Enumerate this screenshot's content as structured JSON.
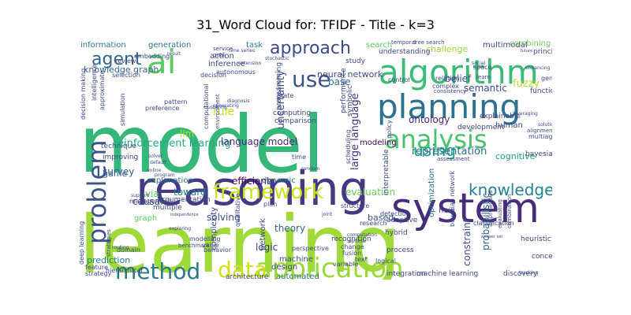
{
  "chart_data": {
    "type": "wordcloud",
    "title": "31_Word Cloud for: TFIDF - Title - k=3",
    "words": [
      {
        "text": "model",
        "weight": 1.0,
        "color": "#35b779"
      },
      {
        "text": "learning",
        "weight": 0.95,
        "color": "#a0da39"
      },
      {
        "text": "reasoning",
        "weight": 0.62,
        "color": "#443a83"
      },
      {
        "text": "system",
        "weight": 0.55,
        "color": "#472c7a"
      },
      {
        "text": "algorithm",
        "weight": 0.5,
        "color": "#3bbb75"
      },
      {
        "text": "planning",
        "weight": 0.45,
        "color": "#2c728e"
      },
      {
        "text": "ai",
        "weight": 0.42,
        "color": "#5ec962"
      },
      {
        "text": "analysis",
        "weight": 0.38,
        "color": "#4ac16d"
      },
      {
        "text": "application",
        "weight": 0.37,
        "color": "#9dd93b"
      },
      {
        "text": "problem",
        "weight": 0.34,
        "color": "#3b528b"
      },
      {
        "text": "framework",
        "weight": 0.3,
        "color": "#cde11d"
      },
      {
        "text": "method",
        "weight": 0.28,
        "color": "#2a788e"
      },
      {
        "text": "data",
        "weight": 0.28,
        "color": "#d0e11c"
      },
      {
        "text": "use",
        "weight": 0.27,
        "color": "#3b528b"
      },
      {
        "text": "approach",
        "weight": 0.25,
        "color": "#3e4989"
      },
      {
        "text": "knowledge",
        "weight": 0.25,
        "color": "#26828e"
      },
      {
        "text": "agent",
        "weight": 0.22,
        "color": "#32648e"
      },
      {
        "text": "using",
        "weight": 0.2,
        "color": "#1f9e89"
      },
      {
        "text": "large language",
        "weight": 0.12,
        "color": "#46327e"
      },
      {
        "text": "uncertainty",
        "weight": 0.12,
        "color": "#3e4989"
      },
      {
        "text": "representation",
        "weight": 0.11,
        "color": "#2d708e"
      },
      {
        "text": "reinforcement learning",
        "weight": 0.11,
        "color": "#22a884"
      },
      {
        "text": "language model",
        "weight": 0.1,
        "color": "#482878"
      },
      {
        "text": "knowledge graph",
        "weight": 0.1,
        "color": "#31688e"
      },
      {
        "text": "neural network",
        "weight": 0.1,
        "color": "#3e4989"
      },
      {
        "text": "survey",
        "weight": 0.1,
        "color": "#3b528b"
      },
      {
        "text": "efficient",
        "weight": 0.1,
        "color": "#440154"
      },
      {
        "text": "evaluation",
        "weight": 0.1,
        "color": "#6ece58"
      },
      {
        "text": "toward",
        "weight": 0.1,
        "color": "#2a788e"
      },
      {
        "text": "solving",
        "weight": 0.09,
        "color": "#3e4989"
      },
      {
        "text": "causal",
        "weight": 0.09,
        "color": "#3e4989"
      },
      {
        "text": "logic",
        "weight": 0.09,
        "color": "#46337e"
      },
      {
        "text": "theory",
        "weight": 0.09,
        "color": "#33638d"
      },
      {
        "text": "fuzzy",
        "weight": 0.09,
        "color": "#b5de2b"
      },
      {
        "text": "belief",
        "weight": 0.09,
        "color": "#3b528b"
      },
      {
        "text": "semantic",
        "weight": 0.09,
        "color": "#3e4989"
      },
      {
        "text": "ontology",
        "weight": 0.09,
        "color": "#482878"
      },
      {
        "text": "challenge",
        "weight": 0.09,
        "color": "#a0da39"
      },
      {
        "text": "multimodal",
        "weight": 0.09,
        "color": "#404688"
      },
      {
        "text": "combining",
        "weight": 0.09,
        "color": "#6ece58"
      },
      {
        "text": "information",
        "weight": 0.09,
        "color": "#2a788e"
      },
      {
        "text": "generation",
        "weight": 0.09,
        "color": "#2c728e"
      },
      {
        "text": "task",
        "weight": 0.09,
        "color": "#26828e"
      },
      {
        "text": "search",
        "weight": 0.09,
        "color": "#5ec962"
      },
      {
        "text": "action",
        "weight": 0.09,
        "color": "#3e4989"
      },
      {
        "text": "inference",
        "weight": 0.09,
        "color": "#3e4989"
      },
      {
        "text": "rule",
        "weight": 0.09,
        "color": "#c8e020"
      },
      {
        "text": "base",
        "weight": 0.09,
        "color": "#2d708e"
      },
      {
        "text": "game",
        "weight": 0.09,
        "color": "#31688e"
      },
      {
        "text": "explanation",
        "weight": 0.09,
        "color": "#2c728e"
      },
      {
        "text": "dynamic",
        "weight": 0.09,
        "color": "#2c728e"
      },
      {
        "text": "modeling",
        "weight": 0.09,
        "color": "#440154"
      },
      {
        "text": "cognitive",
        "weight": 0.09,
        "color": "#1fa088"
      },
      {
        "text": "human",
        "weight": 0.09,
        "color": "#3e4989"
      },
      {
        "text": "optimization",
        "weight": 0.09,
        "color": "#2c728e"
      },
      {
        "text": "based",
        "weight": 0.09,
        "color": "#3b528b"
      },
      {
        "text": "constraint",
        "weight": 0.09,
        "color": "#3b528b"
      },
      {
        "text": "probabilistic",
        "weight": 0.09,
        "color": "#31688e"
      },
      {
        "text": "prediction",
        "weight": 0.09,
        "color": "#277f8e"
      },
      {
        "text": "complexity",
        "weight": 0.09,
        "color": "#3e4989"
      },
      {
        "text": "network",
        "weight": 0.09,
        "color": "#3e4989"
      },
      {
        "text": "machine",
        "weight": 0.09,
        "color": "#3e4989"
      },
      {
        "text": "design",
        "weight": 0.09,
        "color": "#3e4989"
      },
      {
        "text": "automated",
        "weight": 0.09,
        "color": "#2c728e"
      },
      {
        "text": "graph",
        "weight": 0.09,
        "color": "#5ec962"
      },
      {
        "text": "via",
        "weight": 0.09,
        "color": "#5ec962"
      },
      {
        "text": "llm",
        "weight": 0.09,
        "color": "#b5de2b"
      },
      {
        "text": "technique",
        "weight": 0.09,
        "color": "#3b528b"
      },
      {
        "text": "improving",
        "weight": 0.09,
        "color": "#3e4989"
      },
      {
        "text": "recognition",
        "weight": 0.09,
        "color": "#3e4989"
      },
      {
        "text": "adaptive",
        "weight": 0.09,
        "color": "#3e4989"
      },
      {
        "text": "hybrid",
        "weight": 0.09,
        "color": "#3e4989"
      },
      {
        "text": "process",
        "weight": 0.09,
        "color": "#3e4989"
      },
      {
        "text": "concept",
        "weight": 0.09,
        "color": "#3e4989"
      },
      {
        "text": "heuristic",
        "weight": 0.09,
        "color": "#3e4989"
      },
      {
        "text": "bayesian",
        "weight": 0.09,
        "color": "#3e4989"
      },
      {
        "text": "computing",
        "weight": 0.09,
        "color": "#3e4989"
      },
      {
        "text": "comparison",
        "weight": 0.09,
        "color": "#3e4989"
      },
      {
        "text": "machine learning",
        "weight": 0.09,
        "color": "#3e4989"
      },
      {
        "text": "discovery",
        "weight": 0.09,
        "color": "#3e4989"
      },
      {
        "text": "integration",
        "weight": 0.09,
        "color": "#3e4989"
      },
      {
        "text": "architecture",
        "weight": 0.09,
        "color": "#3e4989"
      },
      {
        "text": "strategy",
        "weight": 0.09,
        "color": "#3e4989"
      },
      {
        "text": "feature",
        "weight": 0.09,
        "color": "#3e4989"
      },
      {
        "text": "deep learning",
        "weight": 0.09,
        "color": "#3e4989"
      },
      {
        "text": "multiple",
        "weight": 0.09,
        "color": "#3e4989"
      },
      {
        "text": "management",
        "weight": 0.09,
        "color": "#3e4989"
      },
      {
        "text": "argumentation",
        "weight": 0.09,
        "color": "#3e4989"
      },
      {
        "text": "interpretable",
        "weight": 0.09,
        "color": "#3e4989"
      },
      {
        "text": "explainable",
        "weight": 0.09,
        "color": "#3e4989"
      },
      {
        "text": "development",
        "weight": 0.09,
        "color": "#3e4989"
      },
      {
        "text": "multiagent",
        "weight": 0.09,
        "color": "#3e4989"
      },
      {
        "text": "function",
        "weight": 0.09,
        "color": "#3e4989"
      },
      {
        "text": "general",
        "weight": 0.09,
        "color": "#3e4989"
      },
      {
        "text": "principle",
        "weight": 0.09,
        "color": "#3e4989"
      },
      {
        "text": "understanding",
        "weight": 0.09,
        "color": "#3e4989"
      },
      {
        "text": "study",
        "weight": 0.09,
        "color": "#3e4989"
      },
      {
        "text": "performance",
        "weight": 0.09,
        "color": "#3e4989"
      },
      {
        "text": "symbolic",
        "weight": 0.09,
        "color": "#3e4989"
      },
      {
        "text": "programming",
        "weight": 0.09,
        "color": "#3e4989"
      },
      {
        "text": "computational",
        "weight": 0.09,
        "color": "#3e4989"
      },
      {
        "text": "environment",
        "weight": 0.09,
        "color": "#3e4989"
      },
      {
        "text": "embedding",
        "weight": 0.09,
        "color": "#3e4989"
      },
      {
        "text": "review",
        "weight": 0.09,
        "color": "#3e4989"
      },
      {
        "text": "selection",
        "weight": 0.09,
        "color": "#3e4989"
      },
      {
        "text": "preference",
        "weight": 0.09,
        "color": "#3e4989"
      },
      {
        "text": "simulation",
        "weight": 0.09,
        "color": "#3e4989"
      },
      {
        "text": "autonomous",
        "weight": 0.09,
        "color": "#3e4989"
      },
      {
        "text": "decision",
        "weight": 0.09,
        "color": "#3e4989"
      },
      {
        "text": "pattern",
        "weight": 0.09,
        "color": "#3e4989"
      },
      {
        "text": "decision making",
        "weight": 0.09,
        "color": "#3e4989"
      },
      {
        "text": "intelligence",
        "weight": 0.09,
        "color": "#3e4989"
      },
      {
        "text": "approximate",
        "weight": 0.09,
        "color": "#3e4989"
      },
      {
        "text": "state",
        "weight": 0.09,
        "color": "#3e4989"
      },
      {
        "text": "space",
        "weight": 0.09,
        "color": "#3e4989"
      },
      {
        "text": "control",
        "weight": 0.09,
        "color": "#3e4989"
      },
      {
        "text": "complex",
        "weight": 0.09,
        "color": "#3e4989"
      },
      {
        "text": "relation",
        "weight": 0.09,
        "color": "#3e4989"
      },
      {
        "text": "consistency",
        "weight": 0.09,
        "color": "#3e4989"
      },
      {
        "text": "qualitative",
        "weight": 0.09,
        "color": "#3e4989"
      },
      {
        "text": "modelling",
        "weight": 0.09,
        "color": "#3e4989"
      },
      {
        "text": "value",
        "weight": 0.09,
        "color": "#3e4989"
      },
      {
        "text": "behavior",
        "weight": 0.09,
        "color": "#3e4989"
      },
      {
        "text": "benchmark",
        "weight": 0.09,
        "color": "#3e4989"
      },
      {
        "text": "hierarchical",
        "weight": 0.09,
        "color": "#3e4989"
      },
      {
        "text": "domain",
        "weight": 0.09,
        "color": "#3e4989"
      },
      {
        "text": "strategies",
        "weight": 0.09,
        "color": "#3e4989"
      },
      {
        "text": "plan",
        "weight": 0.09,
        "color": "#3e4989"
      },
      {
        "text": "structure",
        "weight": 0.09,
        "color": "#3e4989"
      },
      {
        "text": "detection",
        "weight": 0.09,
        "color": "#3e4989"
      },
      {
        "text": "research",
        "weight": 0.09,
        "color": "#3e4989"
      },
      {
        "text": "change",
        "weight": 0.09,
        "color": "#3e4989"
      },
      {
        "text": "fusion",
        "weight": 0.09,
        "color": "#3e4989"
      },
      {
        "text": "text",
        "weight": 0.09,
        "color": "#3e4989"
      },
      {
        "text": "logical",
        "weight": 0.09,
        "color": "#3e4989"
      },
      {
        "text": "perspective",
        "weight": 0.09,
        "color": "#3e4989"
      },
      {
        "text": "variable",
        "weight": 0.09,
        "color": "#3e4989"
      },
      {
        "text": "classification",
        "weight": 0.09,
        "color": "#3e4989"
      },
      {
        "text": "approaches",
        "weight": 0.09,
        "color": "#3e4989"
      },
      {
        "text": "evaluating",
        "weight": 0.09,
        "color": "#3e4989"
      },
      {
        "text": "combination",
        "weight": 0.09,
        "color": "#3e4989"
      },
      {
        "text": "bayesian network",
        "weight": 0.09,
        "color": "#3e4989"
      },
      {
        "text": "new",
        "weight": 0.09,
        "color": "#3e4989"
      },
      {
        "text": "policy",
        "weight": 0.09,
        "color": "#3e4989"
      },
      {
        "text": "scheduling",
        "weight": 0.09,
        "color": "#3e4989"
      },
      {
        "text": "service",
        "weight": 0.09,
        "color": "#3e4989"
      },
      {
        "text": "goal",
        "weight": 0.09,
        "color": "#3e4989"
      },
      {
        "text": "time series",
        "weight": 0.09,
        "color": "#3e4989"
      },
      {
        "text": "clustering",
        "weight": 0.09,
        "color": "#3e4989"
      },
      {
        "text": "temporal",
        "weight": 0.09,
        "color": "#3e4989"
      },
      {
        "text": "tree search",
        "weight": 0.09,
        "color": "#3e4989"
      },
      {
        "text": "extension",
        "weight": 0.09,
        "color": "#3e4989"
      },
      {
        "text": "stochastic",
        "weight": 0.09,
        "color": "#3e4989"
      },
      {
        "text": "learn",
        "weight": 0.09,
        "color": "#3e4989"
      },
      {
        "text": "social",
        "weight": 0.09,
        "color": "#3e4989"
      },
      {
        "text": "future",
        "weight": 0.09,
        "color": "#3e4989"
      },
      {
        "text": "enhancing",
        "weight": 0.09,
        "color": "#3e4989"
      },
      {
        "text": "alignment",
        "weight": 0.09,
        "color": "#3e4989"
      },
      {
        "text": "solution",
        "weight": 0.09,
        "color": "#3e4989"
      },
      {
        "text": "leveraging",
        "weight": 0.09,
        "color": "#3e4989"
      },
      {
        "text": "diagnosis",
        "weight": 0.09,
        "color": "#3e4989"
      },
      {
        "text": "generating",
        "weight": 0.09,
        "color": "#3e4989"
      },
      {
        "text": "time",
        "weight": 0.09,
        "color": "#3e4989"
      },
      {
        "text": "random",
        "weight": 0.09,
        "color": "#3e4989"
      },
      {
        "text": "assessment",
        "weight": 0.09,
        "color": "#3e4989"
      },
      {
        "text": "solver",
        "weight": 0.09,
        "color": "#3e4989"
      },
      {
        "text": "default",
        "weight": 0.09,
        "color": "#3e4989"
      },
      {
        "text": "online",
        "weight": 0.09,
        "color": "#3e4989"
      },
      {
        "text": "program",
        "weight": 0.09,
        "color": "#3e4989"
      },
      {
        "text": "support",
        "weight": 0.09,
        "color": "#3e4989"
      },
      {
        "text": "routing",
        "weight": 0.09,
        "color": "#3e4989"
      },
      {
        "text": "exploring",
        "weight": 0.09,
        "color": "#3e4989"
      },
      {
        "text": "independence",
        "weight": 0.09,
        "color": "#3e4989"
      },
      {
        "text": "joint",
        "weight": 0.09,
        "color": "#3e4989"
      },
      {
        "text": "optimal",
        "weight": 0.09,
        "color": "#3e4989"
      },
      {
        "text": "computation",
        "weight": 0.09,
        "color": "#3e4989"
      },
      {
        "text": "answer set",
        "weight": 0.09,
        "color": "#3e4989"
      },
      {
        "text": "tracking",
        "weight": 0.09,
        "color": "#3e4989"
      },
      {
        "text": "result",
        "weight": 0.09,
        "color": "#3e4989"
      }
    ]
  }
}
